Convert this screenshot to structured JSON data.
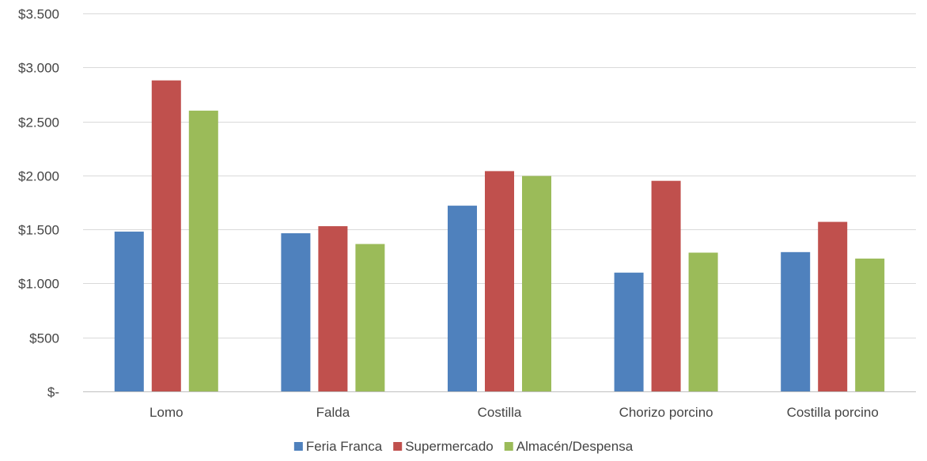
{
  "chart_data": {
    "type": "bar",
    "categories": [
      "Lomo",
      "Falda",
      "Costilla",
      "Chorizo porcino",
      "Costilla porcino"
    ],
    "series": [
      {
        "name": "Feria Franca",
        "color": "#4f81bd",
        "values": [
          1480,
          1465,
          1720,
          1100,
          1290
        ]
      },
      {
        "name": "Supermercado",
        "color": "#c0504d",
        "values": [
          2880,
          1530,
          2040,
          1950,
          1570
        ]
      },
      {
        "name": "Almacén/Despensa",
        "color": "#9bbb59",
        "values": [
          2600,
          1365,
          1995,
          1285,
          1230
        ]
      }
    ],
    "yticks": [
      0,
      500,
      1000,
      1500,
      2000,
      2500,
      3000,
      3500
    ],
    "ytick_labels": [
      "$-",
      "$500",
      "$1.000",
      "$1.500",
      "$2.000",
      "$2.500",
      "$3.000",
      "$3.500"
    ],
    "ylim": [
      0,
      3500
    ],
    "grid": true,
    "legend_position": "bottom"
  }
}
